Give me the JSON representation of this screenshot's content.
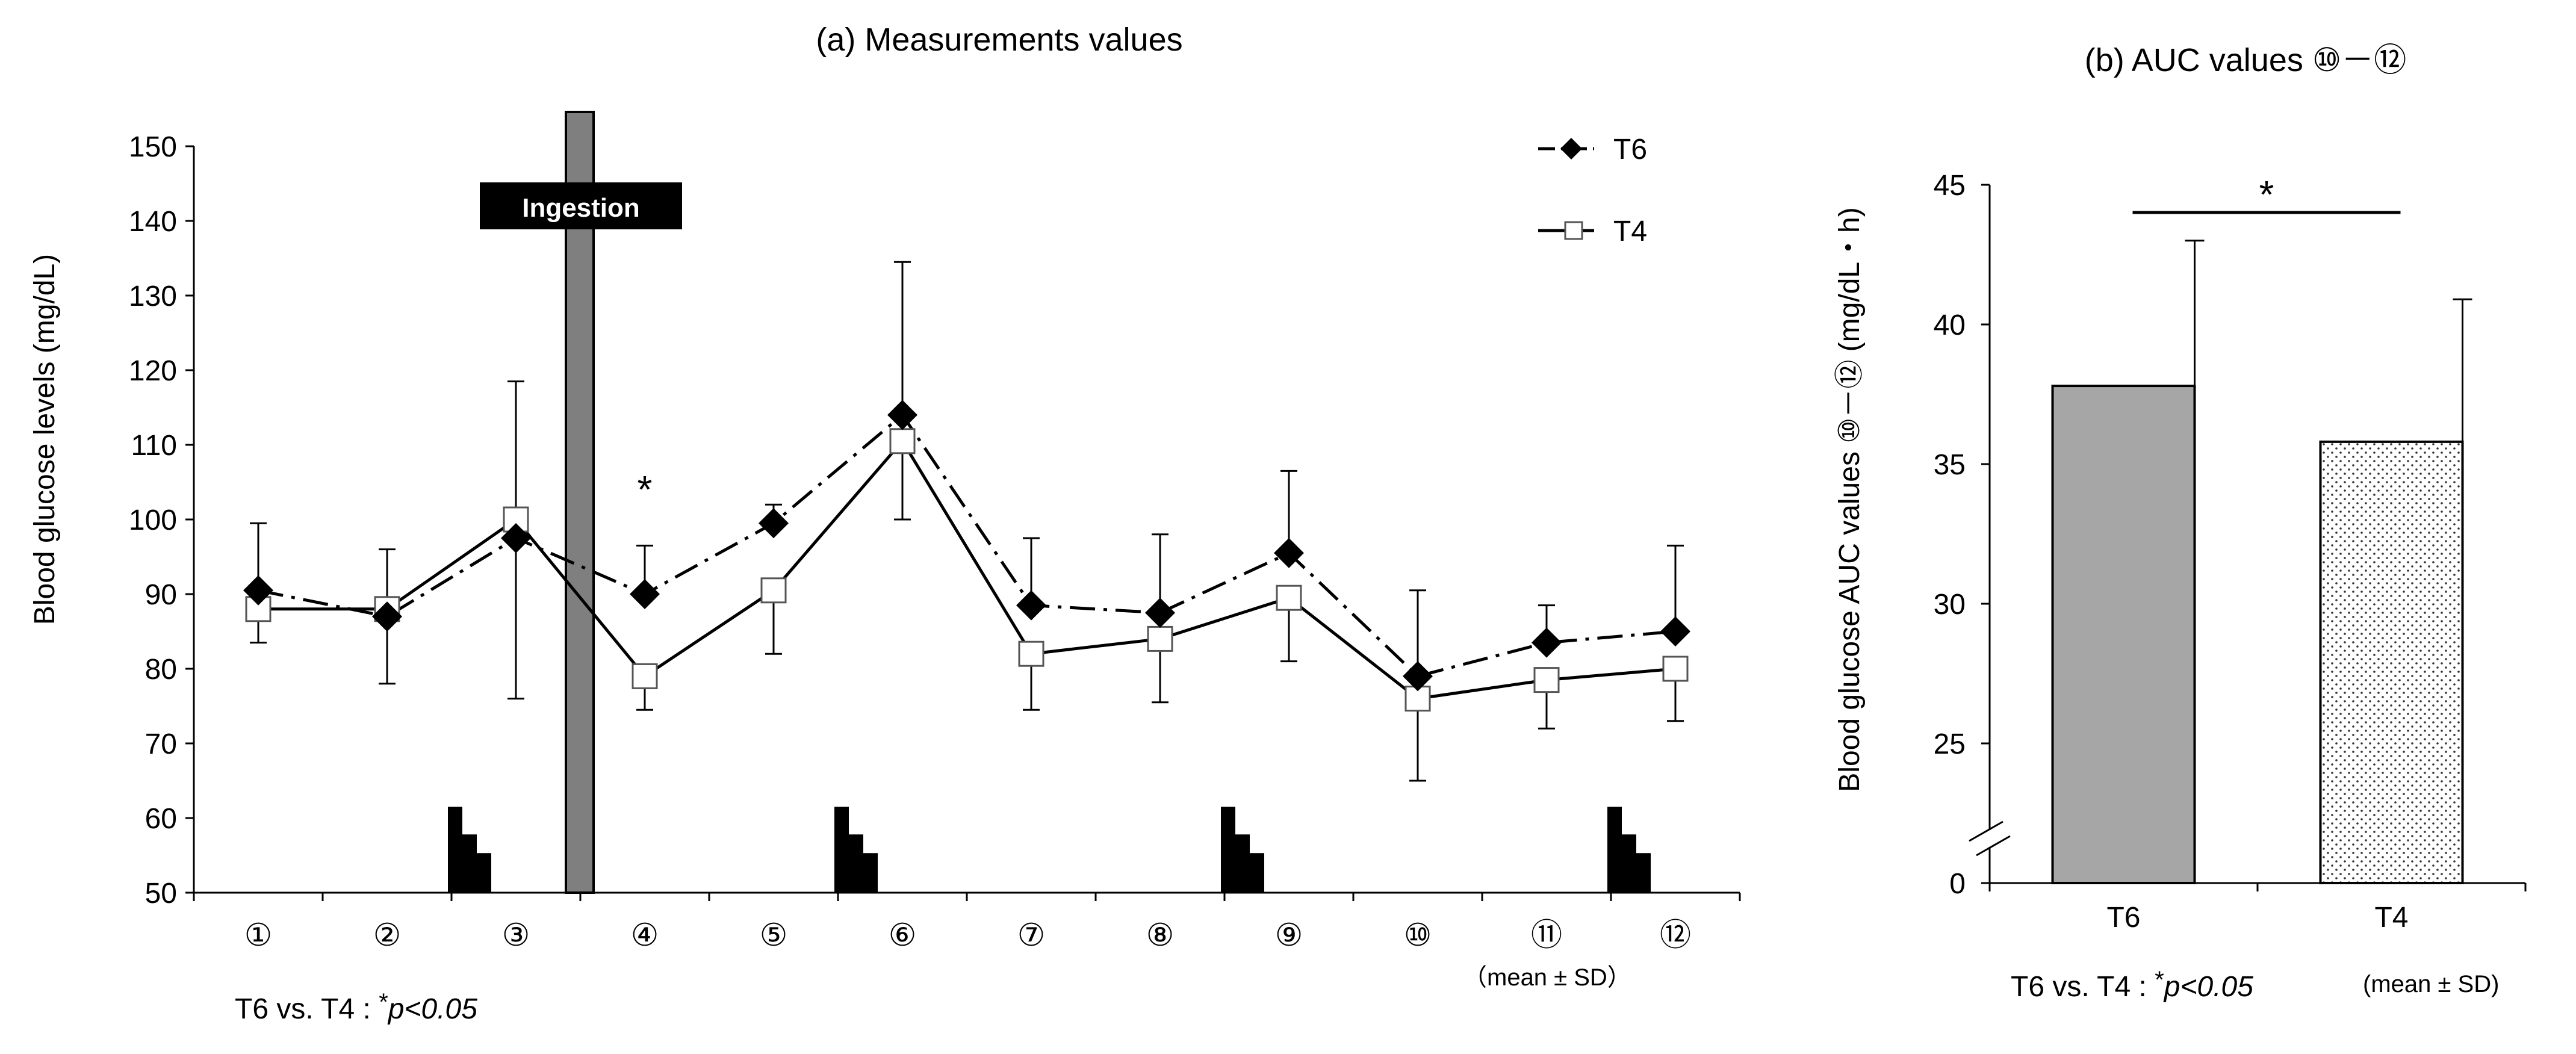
{
  "chart_data": [
    {
      "type": "line",
      "title": "(a) Measurements values",
      "ylabel": "Blood glucose levels (mg/dL)",
      "xlabel": "",
      "ylim": [
        50,
        150
      ],
      "yticks": [
        50,
        60,
        70,
        80,
        90,
        100,
        110,
        120,
        130,
        140,
        150
      ],
      "categories": [
        "①",
        "②",
        "③",
        "④",
        "⑤",
        "⑥",
        "⑦",
        "⑧",
        "⑨",
        "⑩",
        "⑪",
        "⑫"
      ],
      "series": [
        {
          "name": "T6",
          "marker": "filled-diamond",
          "line": "dash-dot",
          "values": [
            90.5,
            87,
            97.5,
            90,
            99.5,
            114,
            88.5,
            87.5,
            95.5,
            79,
            83.5,
            85
          ],
          "sd": [
            9,
            9,
            21,
            6.5,
            2.5,
            20.5,
            9,
            10.5,
            11,
            11.5,
            5,
            11.5
          ]
        },
        {
          "name": "T4",
          "marker": "open-square",
          "line": "solid",
          "values": [
            88,
            88,
            100,
            79,
            90.5,
            110.5,
            82,
            84,
            89.5,
            76,
            78.5,
            80
          ],
          "sd": [
            4.5,
            10,
            24,
            4.5,
            8.5,
            10.5,
            7.5,
            8.5,
            8.5,
            11,
            6.5,
            7
          ]
        }
      ],
      "ingestion": {
        "label": "Ingestion",
        "after_category": "③"
      },
      "significance": {
        "symbol": "*",
        "at_category": "④"
      },
      "footnote_left": "T6 vs. T4 : ",
      "footnote_star": "*",
      "footnote_p": "p<0.05",
      "footnote_right": "（mean ± SD）",
      "meal_markers_after": [
        "②",
        "⑤",
        "⑧",
        "⑪"
      ]
    },
    {
      "type": "bar",
      "title": "(b) AUC values ⑩－⑫",
      "ylabel": "Blood glucose AUC values ⑩－⑫ (mg/dL・h)",
      "categories": [
        "T6",
        "T4"
      ],
      "values": [
        37.8,
        35.8
      ],
      "sd": [
        5.2,
        5.1
      ],
      "ylim": [
        20,
        45
      ],
      "yticks": [
        0,
        25,
        30,
        35,
        40,
        45
      ],
      "axis_break": true,
      "bar_fills": [
        "gray",
        "dotted"
      ],
      "bar_colors": [
        "#a6a6a6",
        "#ffffff"
      ],
      "significance": "*",
      "footnote_left": "T6 vs. T4 : ",
      "footnote_star": "*",
      "footnote_p": "p<0.05",
      "footnote_right": "(mean ± SD)"
    }
  ]
}
